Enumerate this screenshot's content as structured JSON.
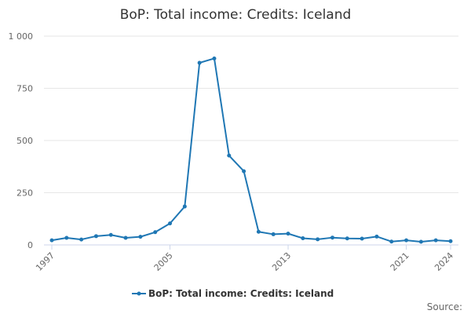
{
  "page": {
    "source_label": "Source:"
  },
  "chart_data": {
    "type": "line",
    "title": "BoP: Total income: Credits: Iceland",
    "xlabel": "",
    "ylabel": "",
    "x": [
      1997,
      1998,
      1999,
      2000,
      2001,
      2002,
      2003,
      2004,
      2005,
      2006,
      2007,
      2008,
      2009,
      2010,
      2011,
      2012,
      2013,
      2014,
      2015,
      2016,
      2017,
      2018,
      2019,
      2020,
      2021,
      2022,
      2023,
      2024
    ],
    "x_tick_values": [
      1997,
      2005,
      2013,
      2021,
      2024
    ],
    "x_tick_labels": [
      "1997",
      "2005",
      "2013",
      "2021",
      "2024"
    ],
    "y_tick_values": [
      0,
      250,
      500,
      750,
      1000
    ],
    "y_tick_labels": [
      "0",
      "250",
      "500",
      "750",
      "1 000"
    ],
    "xlim": [
      1997,
      2024
    ],
    "ylim": [
      0,
      1000
    ],
    "grid": "horizontal",
    "legend_position": "bottom-center",
    "series": [
      {
        "name": "BoP: Total income: Credits: Iceland",
        "color": "#1f77b4",
        "values": [
          22,
          34,
          26,
          42,
          48,
          34,
          39,
          61,
          103,
          184,
          872,
          893,
          428,
          353,
          63,
          51,
          54,
          32,
          27,
          35,
          31,
          30,
          40,
          16,
          22,
          15,
          22,
          18
        ]
      }
    ]
  }
}
